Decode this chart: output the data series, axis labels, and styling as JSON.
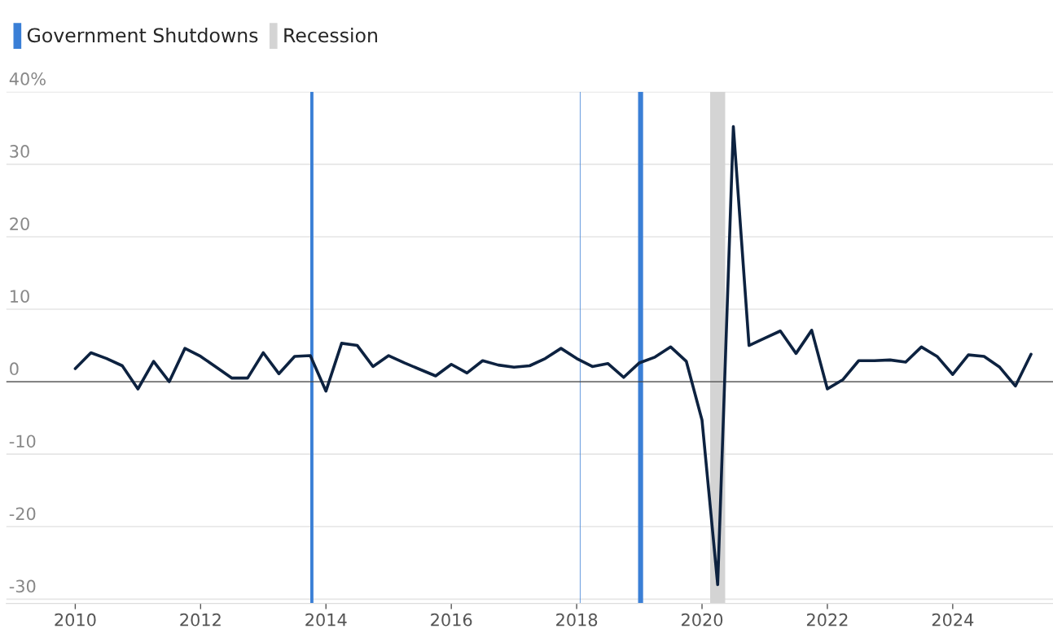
{
  "chart_data": {
    "type": "line",
    "x": [
      2010.0,
      2010.25,
      2010.5,
      2010.75,
      2011.0,
      2011.25,
      2011.5,
      2011.75,
      2012.0,
      2012.25,
      2012.5,
      2012.75,
      2013.0,
      2013.25,
      2013.5,
      2013.75,
      2014.0,
      2014.25,
      2014.5,
      2014.75,
      2015.0,
      2015.25,
      2015.5,
      2015.75,
      2016.0,
      2016.25,
      2016.5,
      2016.75,
      2017.0,
      2017.25,
      2017.5,
      2017.75,
      2018.0,
      2018.25,
      2018.5,
      2018.75,
      2019.0,
      2019.25,
      2019.5,
      2019.75,
      2020.0,
      2020.25,
      2020.5,
      2020.75,
      2021.0,
      2021.25,
      2021.5,
      2021.75,
      2022.0,
      2022.25,
      2022.5,
      2022.75,
      2023.0,
      2023.25,
      2023.5,
      2023.75,
      2024.0,
      2024.25,
      2024.5,
      2024.75,
      2025.0,
      2025.25
    ],
    "series": [
      {
        "color": "#0d2240",
        "values": [
          1.8,
          4.0,
          3.2,
          2.2,
          -1.0,
          2.8,
          0.0,
          4.6,
          3.5,
          2.0,
          0.5,
          0.5,
          4.0,
          1.1,
          3.5,
          3.6,
          -1.3,
          5.3,
          5.0,
          2.1,
          3.6,
          2.6,
          1.7,
          0.8,
          2.4,
          1.2,
          2.9,
          2.3,
          2.0,
          2.2,
          3.2,
          4.6,
          3.2,
          2.1,
          2.5,
          0.6,
          2.6,
          3.4,
          4.8,
          2.8,
          -5.3,
          -28.0,
          35.2,
          5.0,
          6.0,
          7.0,
          3.9,
          7.1,
          -1.0,
          0.3,
          2.9,
          2.9,
          3.0,
          2.7,
          4.8,
          3.5,
          1.0,
          3.7,
          3.5,
          2.0,
          -0.6,
          3.8
        ]
      }
    ],
    "xlim": [
      2008.9,
      2025.6
    ],
    "xticks": [
      2010,
      2012,
      2014,
      2016,
      2018,
      2020,
      2022,
      2024
    ],
    "ylim": [
      -30.6,
      40
    ],
    "yticks": [
      {
        "value": -30,
        "label": "-30"
      },
      {
        "value": -20,
        "label": "-20"
      },
      {
        "value": -10,
        "label": "-10"
      },
      0,
      10,
      20,
      30,
      {
        "value": 40,
        "label": "40%"
      }
    ],
    "grid": "y",
    "legend": "top left",
    "ref_lines": [
      {
        "axis": "y",
        "value": 0,
        "color": "#444444"
      }
    ],
    "bands": [
      {
        "axis": "x",
        "from": 2013.75,
        "to": 2013.8,
        "label": "Government Shutdowns",
        "color": "#3a7fd6"
      },
      {
        "axis": "x",
        "from": 2018.05,
        "to": 2018.06,
        "color": "#3a7fd6"
      },
      {
        "axis": "x",
        "from": 2018.98,
        "to": 2019.06,
        "color": "#3a7fd6"
      },
      {
        "axis": "x",
        "from": 2020.13,
        "to": 2020.37,
        "label": "Recession",
        "color": "#d4d4d4"
      }
    ]
  }
}
